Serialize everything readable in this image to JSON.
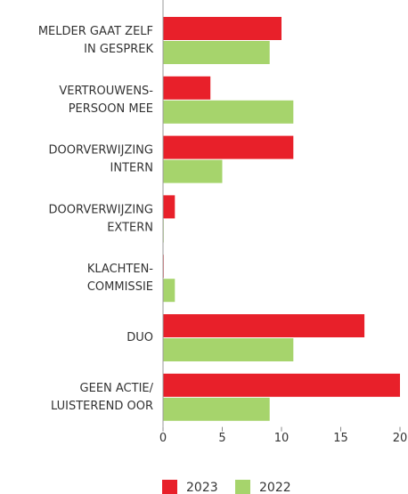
{
  "chart_data": {
    "type": "barh",
    "categories": [
      [
        "MELDER GAAT ZELF",
        "IN GESPREK"
      ],
      [
        "VERTROUWENS-",
        "PERSOON MEE"
      ],
      [
        "DOORVERWIJZING",
        "INTERN"
      ],
      [
        "DOORVERWIJZING",
        "EXTERN"
      ],
      [
        "KLACHTEN-",
        "COMMISSIE"
      ],
      [
        "DUO"
      ],
      [
        "GEEN ACTIE/",
        "LUISTEREND OOR"
      ]
    ],
    "series": [
      {
        "name": "2023",
        "color": "#e8202a",
        "values": [
          10,
          4,
          11,
          1,
          0,
          17,
          20
        ]
      },
      {
        "name": "2022",
        "color": "#a6d46c",
        "values": [
          9,
          11,
          5,
          0,
          1,
          11,
          9
        ]
      }
    ],
    "xlim": [
      0,
      20
    ],
    "xticks": [
      0,
      5,
      10,
      15,
      20
    ],
    "legend": "bottom"
  }
}
